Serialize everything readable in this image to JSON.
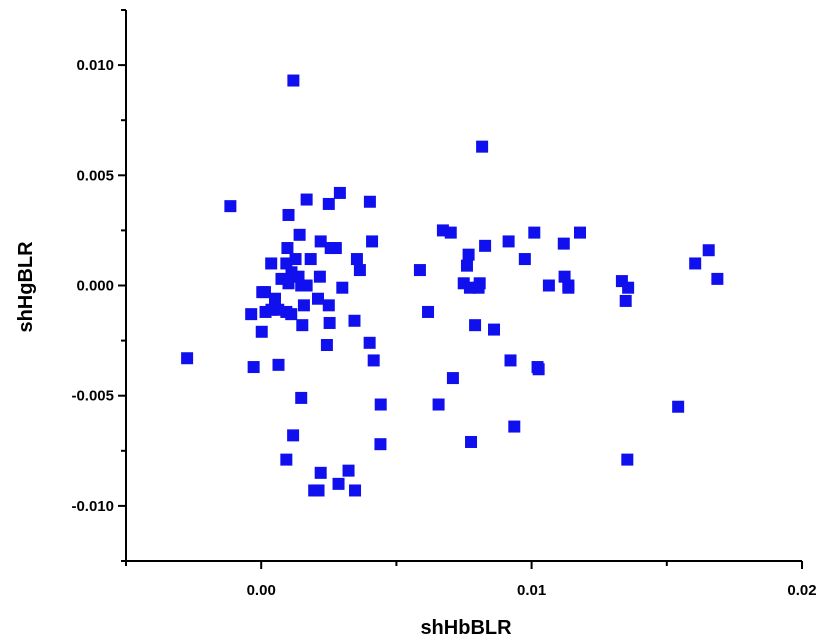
{
  "chart_data": {
    "type": "scatter",
    "xlabel": "shHbBLR",
    "ylabel": "shHgBLR",
    "xlim": [
      -0.005,
      0.02
    ],
    "ylim": [
      -0.0125,
      0.0125
    ],
    "x_ticks": [
      0.0,
      0.01,
      0.02
    ],
    "x_tick_labels": [
      "0.00",
      "0.01",
      "0.02"
    ],
    "y_ticks": [
      0.01,
      0.005,
      0.0,
      -0.005,
      -0.01
    ],
    "y_tick_labels": [
      "0.010",
      "0.005",
      "0.000",
      "-0.005",
      "-0.010"
    ],
    "grid": false,
    "marker": "square",
    "marker_color": "#1010ee",
    "series": [
      {
        "points": [
          [
            0.00119,
            0.0093
          ],
          [
            0.00817,
            0.0063
          ],
          [
            -0.00114,
            0.0036
          ],
          [
            0.00168,
            0.0039
          ],
          [
            0.00291,
            0.0042
          ],
          [
            0.00402,
            0.0038
          ],
          [
            0.0025,
            0.0037
          ],
          [
            0.00101,
            0.0032
          ],
          [
            0.00142,
            0.0023
          ],
          [
            0.00097,
            0.0017
          ],
          [
            0.0022,
            0.002
          ],
          [
            0.00257,
            0.0017
          ],
          [
            0.00276,
            0.0017
          ],
          [
            0.0041,
            0.002
          ],
          [
            0.00037,
            0.001
          ],
          [
            0.00093,
            0.001
          ],
          [
            0.00127,
            0.0012
          ],
          [
            0.00183,
            0.0012
          ],
          [
            0.00354,
            0.0012
          ],
          [
            0.00365,
            0.0007
          ],
          [
            0.00112,
            0.0006
          ],
          [
            0.00075,
            0.0003
          ],
          [
            0.00138,
            0.0004
          ],
          [
            0.00217,
            0.0004
          ],
          [
            0.00101,
            0.0001
          ],
          [
            0.00148,
            0.0
          ],
          [
            0.00168,
            0.0
          ],
          [
            0.003,
            -0.0001
          ],
          [
            4e-05,
            -0.0003
          ],
          [
            0.00014,
            -0.0003
          ],
          [
            0.0021,
            -0.0006
          ],
          [
            0.00051,
            -0.0006
          ],
          [
            0.00038,
            -0.0011
          ],
          [
            0.00016,
            -0.0012
          ],
          [
            0.00063,
            -0.0011
          ],
          [
            0.00093,
            -0.0012
          ],
          [
            0.00111,
            -0.0013
          ],
          [
            -0.00037,
            -0.0013
          ],
          [
            0.00158,
            -0.0009
          ],
          [
            0.0025,
            -0.0009
          ],
          [
            0.00152,
            -0.0018
          ],
          [
            0.00253,
            -0.0017
          ],
          [
            0.00345,
            -0.0016
          ],
          [
            2e-05,
            -0.0021
          ],
          [
            0.00401,
            -0.0026
          ],
          [
            0.00243,
            -0.0027
          ],
          [
            -0.00274,
            -0.0033
          ],
          [
            -0.00028,
            -0.0037
          ],
          [
            0.00064,
            -0.0036
          ],
          [
            0.00416,
            -0.0034
          ],
          [
            0.00148,
            -0.0051
          ],
          [
            0.00442,
            -0.0054
          ],
          [
            0.00118,
            -0.0068
          ],
          [
            0.00441,
            -0.0072
          ],
          [
            0.00093,
            -0.0079
          ],
          [
            0.0022,
            -0.0085
          ],
          [
            0.00323,
            -0.0084
          ],
          [
            0.00286,
            -0.009
          ],
          [
            0.00196,
            -0.0093
          ],
          [
            0.00212,
            -0.0093
          ],
          [
            0.00347,
            -0.0093
          ],
          [
            0.00672,
            0.0025
          ],
          [
            0.00701,
            0.0024
          ],
          [
            0.00587,
            0.0007
          ],
          [
            0.00767,
            0.0014
          ],
          [
            0.00761,
            0.0009
          ],
          [
            0.00749,
            0.0001
          ],
          [
            0.00772,
            -0.0001
          ],
          [
            0.00804,
            -0.0001
          ],
          [
            0.00808,
            0.0001
          ],
          [
            0.00828,
            0.0018
          ],
          [
            0.00915,
            0.002
          ],
          [
            0.00975,
            0.0012
          ],
          [
            0.0101,
            0.0024
          ],
          [
            0.01119,
            0.0019
          ],
          [
            0.01179,
            0.0024
          ],
          [
            0.00617,
            -0.0012
          ],
          [
            0.00791,
            -0.0018
          ],
          [
            0.00861,
            -0.002
          ],
          [
            0.00922,
            -0.0034
          ],
          [
            0.01022,
            -0.0037
          ],
          [
            0.01026,
            -0.0038
          ],
          [
            0.00709,
            -0.0042
          ],
          [
            0.00656,
            -0.0054
          ],
          [
            0.00936,
            -0.0064
          ],
          [
            0.00776,
            -0.0071
          ],
          [
            0.01064,
            0.0
          ],
          [
            0.01122,
            0.0004
          ],
          [
            0.01136,
            -0.0001
          ],
          [
            0.01136,
            0.0
          ],
          [
            0.01334,
            0.0002
          ],
          [
            0.01357,
            -0.0001
          ],
          [
            0.01348,
            -0.0007
          ],
          [
            0.01354,
            -0.0079
          ],
          [
            0.01542,
            -0.0055
          ],
          [
            0.01605,
            0.001
          ],
          [
            0.01655,
            0.0016
          ],
          [
            0.01687,
            0.0003
          ]
        ]
      }
    ]
  }
}
